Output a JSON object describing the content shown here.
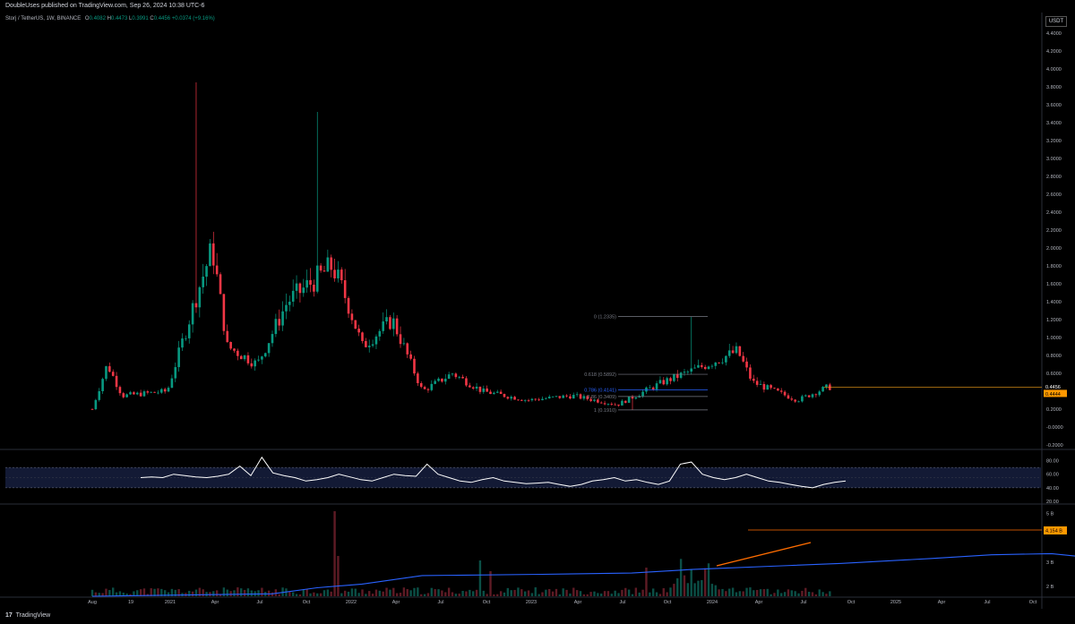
{
  "header": {
    "published": "DoubleUses published on TradingView.com, Sep 26, 2024 10:38 UTC-6",
    "symbol": "Storj / TetherUS, 1W, BINANCE",
    "o_label": "O",
    "o": "0.4082",
    "h_label": "H",
    "h": "0.4473",
    "l_label": "L",
    "l": "0.3991",
    "c_label": "C",
    "c": "0.4456",
    "change": "+0.0374 (+9.16%)",
    "currency": "USDT"
  },
  "footer": {
    "brand": "TradingView",
    "logo": "17"
  },
  "colors": {
    "up": "#089981",
    "down": "#f23645",
    "rsi": "#ffffff",
    "obv": "#2962ff",
    "trendline": "#ff6d00",
    "fib": "#787b86",
    "fib_786": "#2962ff"
  },
  "chart_data": [
    {
      "type": "candlestick",
      "title": "Storj / TetherUS, 1W, BINANCE",
      "y_scale": "linear",
      "ylim": [
        -0.2,
        4.4
      ],
      "y_ticks": [
        "4.4000",
        "4.2000",
        "4.0000",
        "3.8000",
        "3.6000",
        "3.4000",
        "3.2000",
        "3.0000",
        "2.8000",
        "2.6000",
        "2.4000",
        "2.2000",
        "2.0000",
        "1.8000",
        "1.6000",
        "1.4000",
        "1.2000",
        "1.0000",
        "0.8000",
        "0.6000",
        "0.4000",
        "0.2000",
        "-0.0000",
        "-0.2000"
      ],
      "x_ticks": [
        "Aug",
        "19",
        "2021",
        "Apr",
        "Jul",
        "Oct",
        "2022",
        "Apr",
        "Jul",
        "Oct",
        "2023",
        "Apr",
        "Jul",
        "Oct",
        "2024",
        "Apr",
        "Jul",
        "Oct",
        "2025",
        "Apr",
        "Jul",
        "Oct"
      ],
      "price_labels": [
        "0.4456",
        "0.4444"
      ],
      "key_points": [
        {
          "x": "Aug 2020",
          "close": 0.2
        },
        {
          "x": "Sep 2020",
          "close": 0.7
        },
        {
          "x": "Oct 2020",
          "close": 0.35
        },
        {
          "x": "Jan 2021",
          "close": 0.4
        },
        {
          "x": "Mar 2021",
          "close": 1.5
        },
        {
          "x": "Mar 2021",
          "high": 3.85
        },
        {
          "x": "Apr 2021",
          "close": 2.0
        },
        {
          "x": "May 2021",
          "close": 0.9
        },
        {
          "x": "Jul 2021",
          "close": 0.7
        },
        {
          "x": "Sep 2021",
          "close": 1.4
        },
        {
          "x": "Nov 2021",
          "high": 3.52
        },
        {
          "x": "Dec 2021",
          "close": 1.8
        },
        {
          "x": "Jan 2022",
          "close": 1.4
        },
        {
          "x": "Feb 2022",
          "close": 0.9
        },
        {
          "x": "Apr 2022",
          "close": 1.2
        },
        {
          "x": "Jun 2022",
          "close": 0.4
        },
        {
          "x": "Aug 2022",
          "close": 0.6
        },
        {
          "x": "Oct 2022",
          "close": 0.4
        },
        {
          "x": "Jan 2023",
          "close": 0.3
        },
        {
          "x": "Apr 2023",
          "close": 0.35
        },
        {
          "x": "Jul 2023",
          "close": 0.25
        },
        {
          "x": "Aug 2023",
          "low": 0.191
        },
        {
          "x": "Oct 2023",
          "close": 0.5
        },
        {
          "x": "Dec 2023",
          "high": 1.2335
        },
        {
          "x": "Jan 2024",
          "close": 0.7
        },
        {
          "x": "Mar 2024",
          "close": 0.85
        },
        {
          "x": "Apr 2024",
          "close": 0.5
        },
        {
          "x": "Jul 2024",
          "close": 0.3
        },
        {
          "x": "Sep 2024",
          "close": 0.4456
        }
      ],
      "fib_levels": [
        {
          "label": "0 (1.2335)",
          "value": 1.2335
        },
        {
          "label": "0.618 (0.5892)",
          "value": 0.5892
        },
        {
          "label": "0.786 (0.4141)",
          "value": 0.4141
        },
        {
          "label": "0.86 (0.3409)",
          "value": 0.3409
        },
        {
          "label": "1 (0.1910)",
          "value": 0.191
        }
      ],
      "last_price": 0.4456
    },
    {
      "type": "line",
      "name": "RSI",
      "ylim": [
        20,
        90
      ],
      "y_ticks": [
        "80.00",
        "60.00",
        "40.00",
        "20.00"
      ],
      "bands": [
        40,
        70
      ],
      "values_sample": [
        55,
        56,
        55,
        60,
        58,
        56,
        55,
        57,
        60,
        72,
        58,
        85,
        62,
        58,
        55,
        50,
        52,
        55,
        60,
        56,
        52,
        50,
        55,
        60,
        58,
        57,
        75,
        60,
        55,
        50,
        48,
        52,
        55,
        50,
        48,
        46,
        47,
        48,
        45,
        42,
        45,
        50,
        52,
        55,
        50,
        52,
        48,
        45,
        50,
        75,
        78,
        60,
        55,
        52,
        55,
        60,
        55,
        50,
        48,
        45,
        42,
        40,
        45,
        48,
        50
      ]
    },
    {
      "type": "line",
      "name": "OBV",
      "y_ticks": [
        "5 B",
        "3 B",
        "2 B"
      ],
      "last_value_label": "4.154 B"
    }
  ]
}
